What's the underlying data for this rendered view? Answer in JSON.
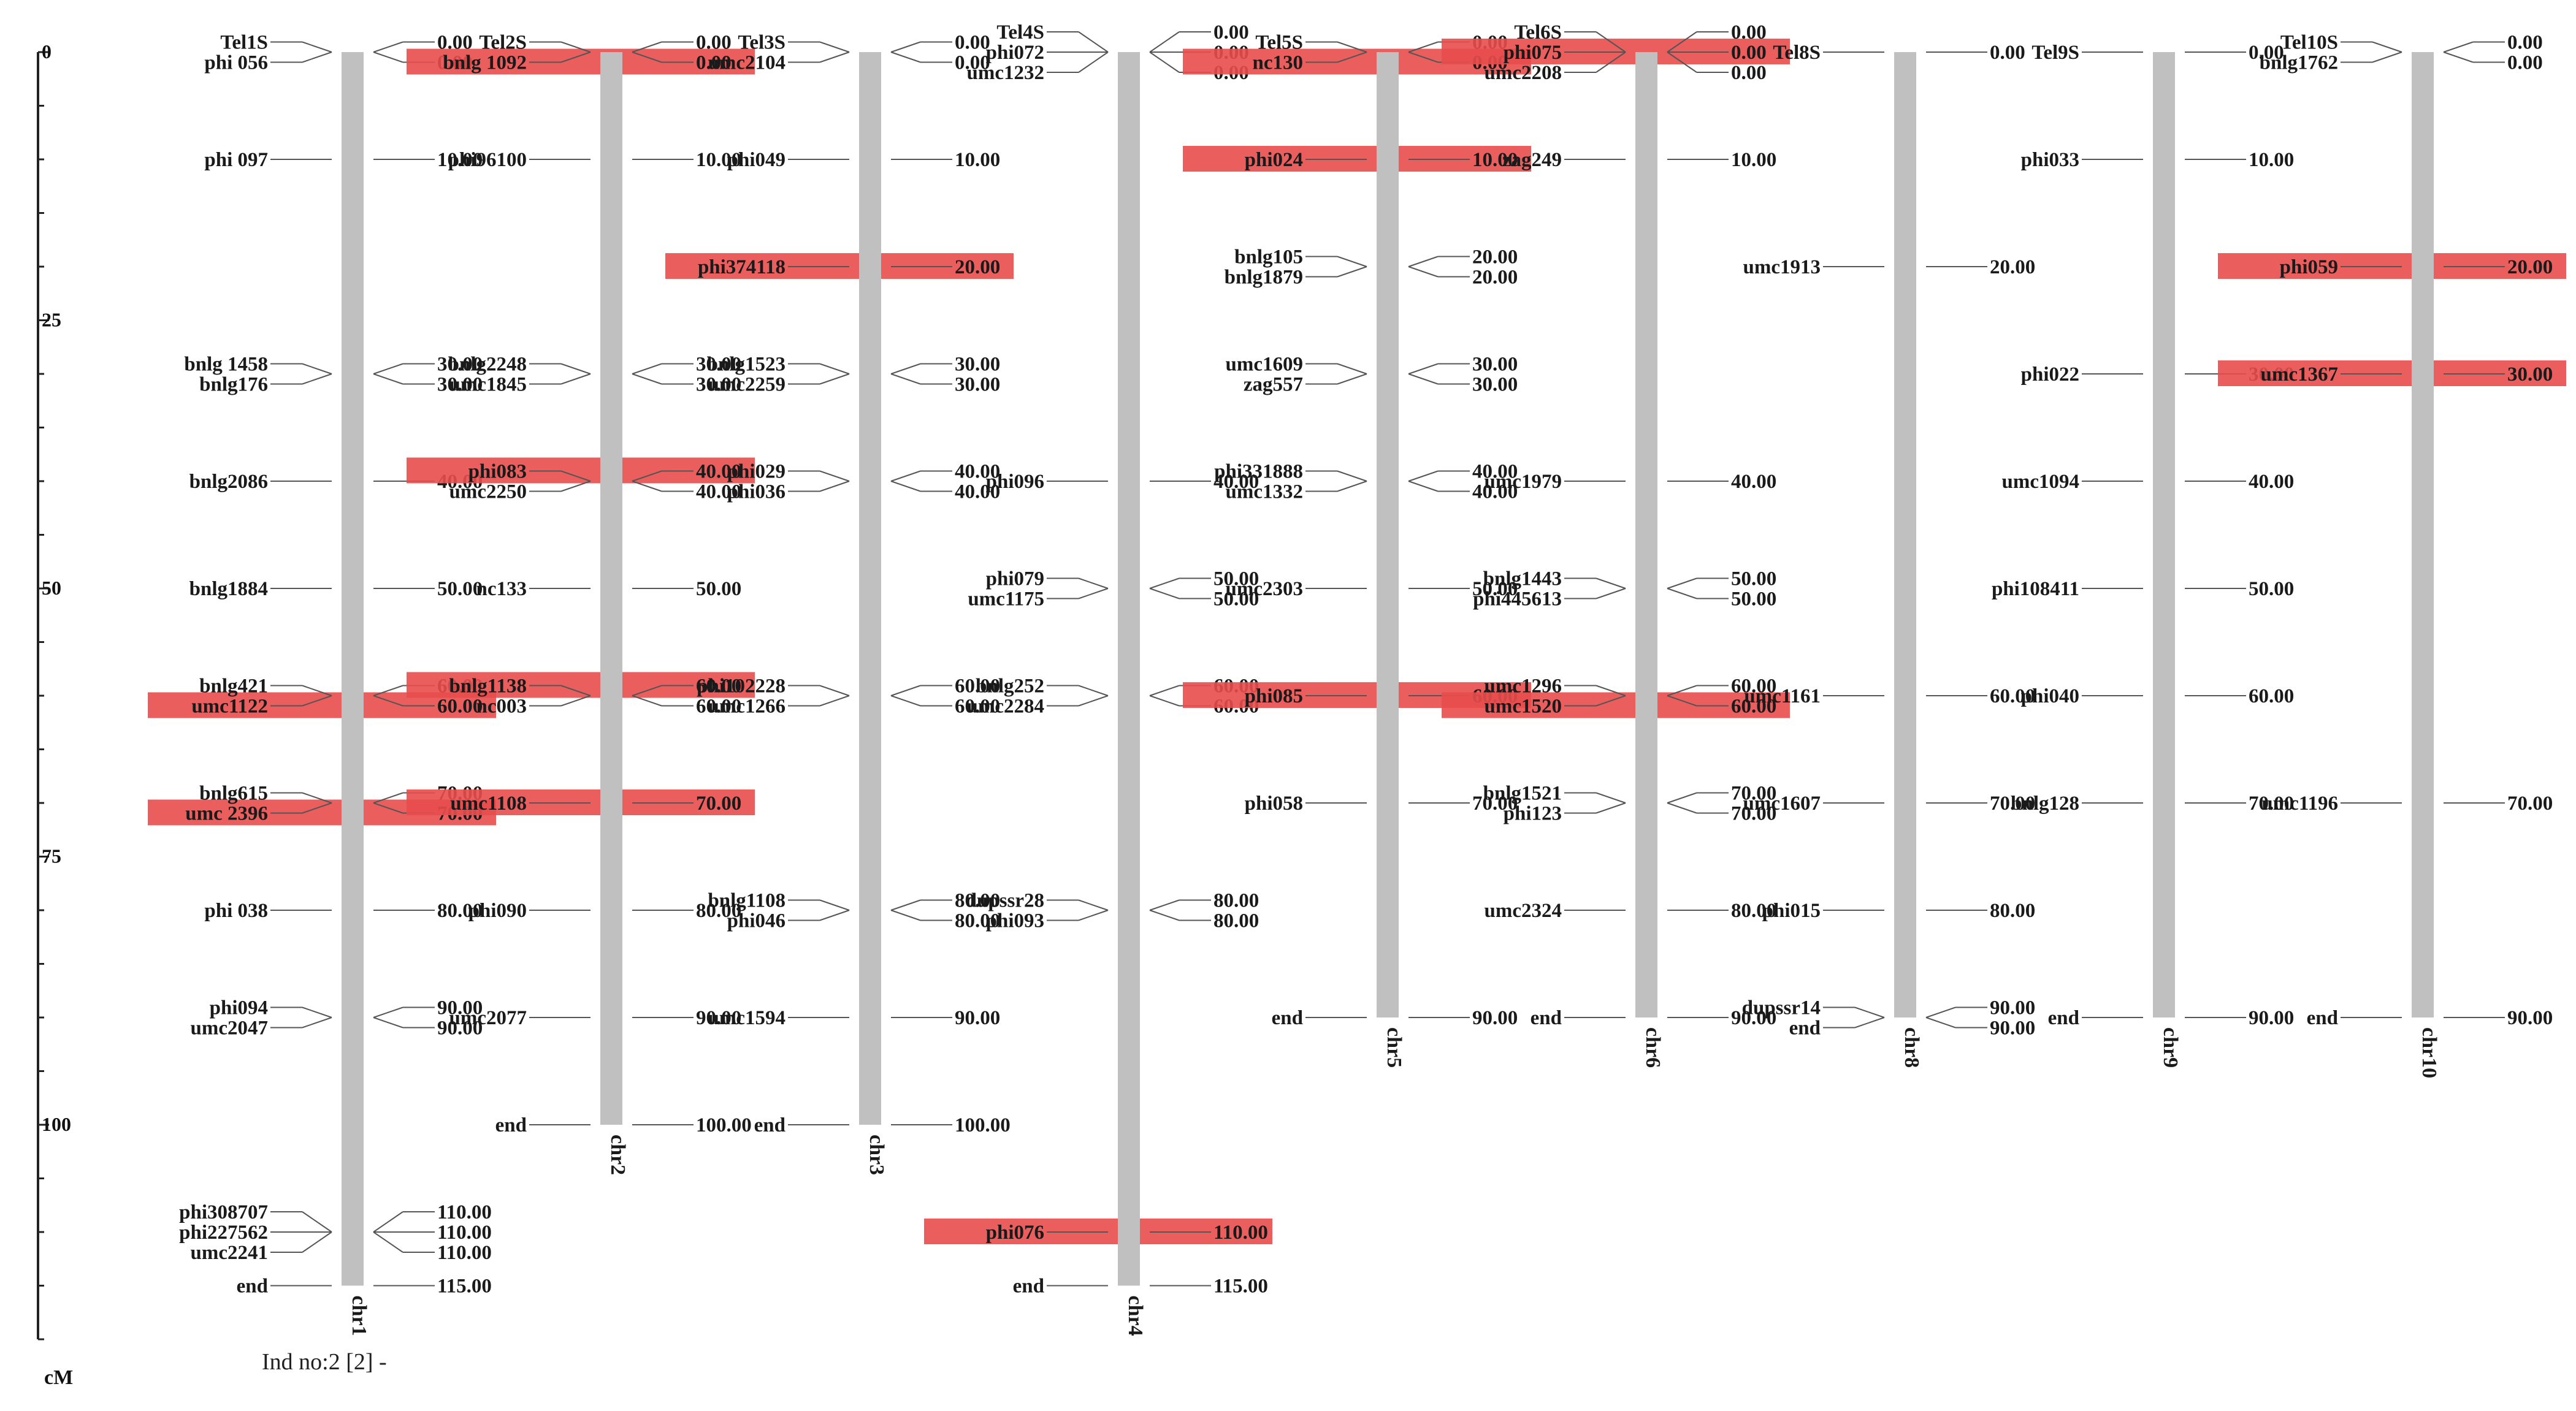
{
  "axis": {
    "ticks": [
      0,
      25,
      50,
      75,
      100
    ],
    "max_cm": 120,
    "unit": "cM"
  },
  "footer": {
    "text": "Ind no:2 [2] -"
  },
  "colors": {
    "bar": "#c0c0c0",
    "highlight": "#e84c4c",
    "text": "#1a1a1a",
    "line": "#555555"
  },
  "chromosomes": [
    {
      "name": "chr1",
      "length": 115,
      "markers": [
        {
          "name": "Tel1S",
          "pos": 0,
          "pos_label": "0.00"
        },
        {
          "name": "phi 056",
          "pos": 0,
          "pos_label": "0.00"
        },
        {
          "name": "phi 097",
          "pos": 10,
          "pos_label": "10.00"
        },
        {
          "name": "bnlg 1458",
          "pos": 30,
          "pos_label": "30.00"
        },
        {
          "name": "bnlg176",
          "pos": 30,
          "pos_label": "30.00"
        },
        {
          "name": "bnlg2086",
          "pos": 40,
          "pos_label": "40.00"
        },
        {
          "name": "bnlg1884",
          "pos": 50,
          "pos_label": "50.00"
        },
        {
          "name": "bnlg421",
          "pos": 60,
          "pos_label": "60.00"
        },
        {
          "name": "umc1122",
          "pos": 60,
          "pos_label": "60.00",
          "highlight": true
        },
        {
          "name": "bnlg615",
          "pos": 70,
          "pos_label": "70.00"
        },
        {
          "name": "umc 2396",
          "pos": 70,
          "pos_label": "70.00",
          "highlight": true
        },
        {
          "name": "phi 038",
          "pos": 80,
          "pos_label": "80.00"
        },
        {
          "name": "phi094",
          "pos": 90,
          "pos_label": "90.00"
        },
        {
          "name": "umc2047",
          "pos": 90,
          "pos_label": "90.00"
        },
        {
          "name": "phi308707",
          "pos": 110,
          "pos_label": "110.00"
        },
        {
          "name": "phi227562",
          "pos": 110,
          "pos_label": "110.00"
        },
        {
          "name": "umc2241",
          "pos": 110,
          "pos_label": "110.00"
        },
        {
          "name": "end",
          "pos": 115,
          "pos_label": "115.00"
        }
      ]
    },
    {
      "name": "chr2",
      "length": 100,
      "markers": [
        {
          "name": "Tel2S",
          "pos": 0,
          "pos_label": "0.00"
        },
        {
          "name": "bnlg 1092",
          "pos": 0,
          "pos_label": "0.00",
          "highlight": true
        },
        {
          "name": "phi96100",
          "pos": 10,
          "pos_label": "10.00"
        },
        {
          "name": "bnlg2248",
          "pos": 30,
          "pos_label": "30.00"
        },
        {
          "name": "umc1845",
          "pos": 30,
          "pos_label": "30.00"
        },
        {
          "name": "phi083",
          "pos": 40,
          "pos_label": "40.00",
          "highlight": true
        },
        {
          "name": "umc2250",
          "pos": 40,
          "pos_label": "40.00"
        },
        {
          "name": "nc133",
          "pos": 50,
          "pos_label": "50.00"
        },
        {
          "name": "bnlg1138",
          "pos": 60,
          "pos_label": "60.00",
          "highlight": true
        },
        {
          "name": "nc003",
          "pos": 60,
          "pos_label": "60.00"
        },
        {
          "name": "umc1108",
          "pos": 70,
          "pos_label": "70.00",
          "highlight": true
        },
        {
          "name": "phi090",
          "pos": 80,
          "pos_label": "80.00"
        },
        {
          "name": "umc2077",
          "pos": 90,
          "pos_label": "90.00"
        },
        {
          "name": "end",
          "pos": 100,
          "pos_label": "100.00"
        }
      ]
    },
    {
      "name": "chr3",
      "length": 100,
      "markers": [
        {
          "name": "Tel3S",
          "pos": 0,
          "pos_label": "0.00"
        },
        {
          "name": "umc2104",
          "pos": 0,
          "pos_label": "0.00"
        },
        {
          "name": "phi049",
          "pos": 10,
          "pos_label": "10.00"
        },
        {
          "name": "phi374118",
          "pos": 20,
          "pos_label": "20.00",
          "highlight": true
        },
        {
          "name": "bnlg1523",
          "pos": 30,
          "pos_label": "30.00"
        },
        {
          "name": "umc2259",
          "pos": 30,
          "pos_label": "30.00"
        },
        {
          "name": "phi029",
          "pos": 40,
          "pos_label": "40.00"
        },
        {
          "name": "phi036",
          "pos": 40,
          "pos_label": "40.00"
        },
        {
          "name": "phi102228",
          "pos": 60,
          "pos_label": "60.00"
        },
        {
          "name": "umc1266",
          "pos": 60,
          "pos_label": "60.00"
        },
        {
          "name": "bnlg1108",
          "pos": 80,
          "pos_label": "80.00"
        },
        {
          "name": "phi046",
          "pos": 80,
          "pos_label": "80.00"
        },
        {
          "name": "umc1594",
          "pos": 90,
          "pos_label": "90.00"
        },
        {
          "name": "end",
          "pos": 100,
          "pos_label": "100.00"
        }
      ]
    },
    {
      "name": "chr4",
      "length": 115,
      "markers": [
        {
          "name": "Tel4S",
          "pos": 0,
          "pos_label": "0.00"
        },
        {
          "name": "phi072",
          "pos": 0,
          "pos_label": "0.00"
        },
        {
          "name": "umc1232",
          "pos": 0,
          "pos_label": "0.00"
        },
        {
          "name": "phi096",
          "pos": 40,
          "pos_label": "40.00"
        },
        {
          "name": "phi079",
          "pos": 50,
          "pos_label": "50.00"
        },
        {
          "name": "umc1175",
          "pos": 50,
          "pos_label": "50.00"
        },
        {
          "name": "bnlg252",
          "pos": 60,
          "pos_label": "60.00"
        },
        {
          "name": "umc2284",
          "pos": 60,
          "pos_label": "60.00"
        },
        {
          "name": "dupssr28",
          "pos": 80,
          "pos_label": "80.00"
        },
        {
          "name": "phi093",
          "pos": 80,
          "pos_label": "80.00"
        },
        {
          "name": "phi076",
          "pos": 110,
          "pos_label": "110.00",
          "highlight": true
        },
        {
          "name": "end",
          "pos": 115,
          "pos_label": "115.00"
        }
      ]
    },
    {
      "name": "chr5",
      "length": 90,
      "markers": [
        {
          "name": "Tel5S",
          "pos": 0,
          "pos_label": "0.00"
        },
        {
          "name": "nc130",
          "pos": 0,
          "pos_label": "0.00",
          "highlight": true
        },
        {
          "name": "phi024",
          "pos": 10,
          "pos_label": "10.00",
          "highlight": true
        },
        {
          "name": "bnlg105",
          "pos": 20,
          "pos_label": "20.00"
        },
        {
          "name": "bnlg1879",
          "pos": 20,
          "pos_label": "20.00"
        },
        {
          "name": "umc1609",
          "pos": 30,
          "pos_label": "30.00"
        },
        {
          "name": "zag557",
          "pos": 30,
          "pos_label": "30.00"
        },
        {
          "name": "phi331888",
          "pos": 40,
          "pos_label": "40.00"
        },
        {
          "name": "umc1332",
          "pos": 40,
          "pos_label": "40.00"
        },
        {
          "name": "umc2303",
          "pos": 50,
          "pos_label": "50.00"
        },
        {
          "name": "phi085",
          "pos": 60,
          "pos_label": "60.00",
          "highlight": true
        },
        {
          "name": "phi058",
          "pos": 70,
          "pos_label": "70.00"
        },
        {
          "name": "end",
          "pos": 90,
          "pos_label": "90.00"
        }
      ]
    },
    {
      "name": "chr6",
      "length": 90,
      "markers": [
        {
          "name": "Tel6S",
          "pos": 0,
          "pos_label": "0.00"
        },
        {
          "name": "phi075",
          "pos": 0,
          "pos_label": "0.00",
          "highlight": true
        },
        {
          "name": "umc2208",
          "pos": 0,
          "pos_label": "0.00"
        },
        {
          "name": "zag249",
          "pos": 10,
          "pos_label": "10.00"
        },
        {
          "name": "umc1979",
          "pos": 40,
          "pos_label": "40.00"
        },
        {
          "name": "bnlg1443",
          "pos": 50,
          "pos_label": "50.00"
        },
        {
          "name": "phi445613",
          "pos": 50,
          "pos_label": "50.00"
        },
        {
          "name": "umc1296",
          "pos": 60,
          "pos_label": "60.00"
        },
        {
          "name": "umc1520",
          "pos": 60,
          "pos_label": "60.00",
          "highlight": true
        },
        {
          "name": "bnlg1521",
          "pos": 70,
          "pos_label": "70.00"
        },
        {
          "name": "phi123",
          "pos": 70,
          "pos_label": "70.00"
        },
        {
          "name": "umc2324",
          "pos": 80,
          "pos_label": "80.00"
        },
        {
          "name": "end",
          "pos": 90,
          "pos_label": "90.00"
        }
      ]
    },
    {
      "name": "chr8",
      "length": 90,
      "markers": [
        {
          "name": "Tel8S",
          "pos": 0,
          "pos_label": "0.00"
        },
        {
          "name": "umc1913",
          "pos": 20,
          "pos_label": "20.00"
        },
        {
          "name": "umc1161",
          "pos": 60,
          "pos_label": "60.00"
        },
        {
          "name": "umc1607",
          "pos": 70,
          "pos_label": "70.00"
        },
        {
          "name": "phi015",
          "pos": 80,
          "pos_label": "80.00"
        },
        {
          "name": "dupssr14",
          "pos": 90,
          "pos_label": "90.00"
        },
        {
          "name": "end",
          "pos": 90,
          "pos_label": "90.00"
        }
      ]
    },
    {
      "name": "chr9",
      "length": 90,
      "markers": [
        {
          "name": "Tel9S",
          "pos": 0,
          "pos_label": "0.00"
        },
        {
          "name": "phi033",
          "pos": 10,
          "pos_label": "10.00"
        },
        {
          "name": "phi022",
          "pos": 30,
          "pos_label": "30.00"
        },
        {
          "name": "umc1094",
          "pos": 40,
          "pos_label": "40.00"
        },
        {
          "name": "phi108411",
          "pos": 50,
          "pos_label": "50.00"
        },
        {
          "name": "phi040",
          "pos": 60,
          "pos_label": "60.00"
        },
        {
          "name": "bnlg128",
          "pos": 70,
          "pos_label": "70.00"
        },
        {
          "name": "end",
          "pos": 90,
          "pos_label": "90.00"
        }
      ]
    },
    {
      "name": "chr10",
      "length": 90,
      "markers": [
        {
          "name": "Tel10S",
          "pos": 0,
          "pos_label": "0.00"
        },
        {
          "name": "bnlg1762",
          "pos": 0,
          "pos_label": "0.00"
        },
        {
          "name": "phi059",
          "pos": 20,
          "pos_label": "20.00",
          "highlight": true
        },
        {
          "name": "umc1367",
          "pos": 30,
          "pos_label": "30.00",
          "highlight": true
        },
        {
          "name": "umc1196",
          "pos": 70,
          "pos_label": "70.00"
        },
        {
          "name": "end",
          "pos": 90,
          "pos_label": "90.00"
        }
      ]
    }
  ]
}
